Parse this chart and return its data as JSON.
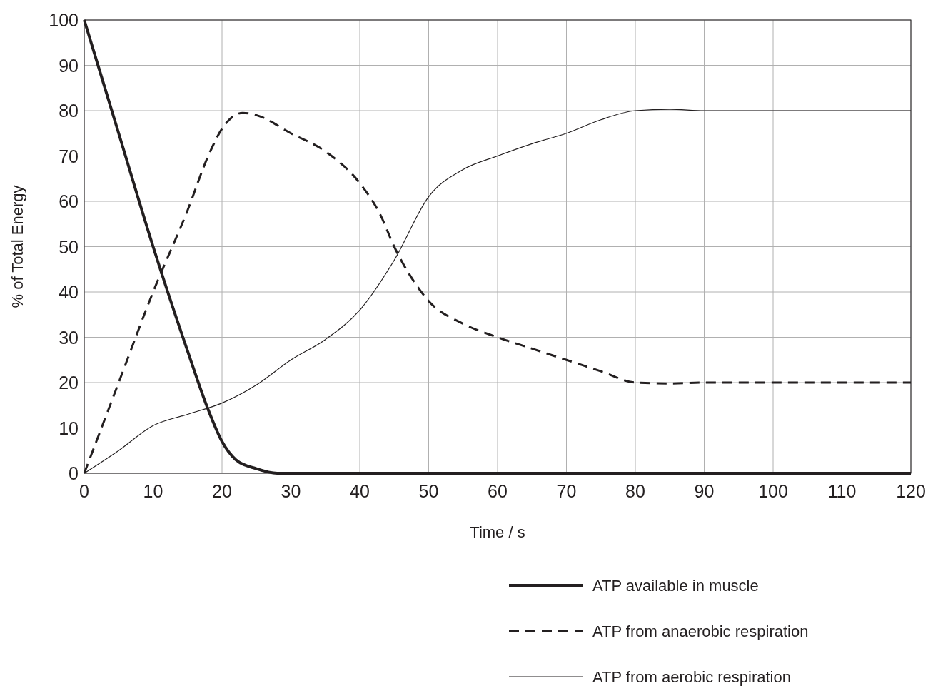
{
  "chart_data": {
    "type": "line",
    "xlabel": "Time / s",
    "ylabel": "% of Total Energy",
    "xlim": [
      0,
      120
    ],
    "ylim": [
      0,
      100
    ],
    "xticks": [
      0,
      10,
      20,
      30,
      40,
      50,
      60,
      70,
      80,
      90,
      100,
      110,
      120
    ],
    "yticks": [
      0,
      10,
      20,
      30,
      40,
      50,
      60,
      70,
      80,
      90,
      100
    ],
    "grid": true,
    "legend": "bottom",
    "series": [
      {
        "name": "ATP available in muscle",
        "color": "#231f20",
        "line_style": "solid",
        "x": [
          0,
          5,
          10,
          15,
          18,
          20,
          22,
          25,
          28,
          30,
          120
        ],
        "values": [
          100,
          75,
          50,
          27,
          14,
          7,
          3,
          1,
          0,
          0,
          0
        ]
      },
      {
        "name": "ATP from anaerobic respiration",
        "color": "#231f20",
        "line_style": "dashed",
        "x": [
          0,
          5,
          10,
          15,
          18,
          20,
          23,
          25,
          30,
          35,
          40,
          43,
          45,
          48,
          50,
          55,
          60,
          65,
          70,
          75,
          80,
          85,
          90,
          120
        ],
        "values": [
          0,
          20,
          40,
          58,
          70,
          76,
          79.5,
          79,
          75,
          71,
          64,
          57,
          50,
          42,
          38,
          33,
          30,
          27.5,
          25,
          22.5,
          20,
          19.8,
          20,
          20
        ]
      },
      {
        "name": "ATP from aerobic respiration",
        "color": "#231f20",
        "line_style": "solid",
        "x": [
          0,
          5,
          10,
          15,
          20,
          25,
          30,
          35,
          40,
          45,
          50,
          55,
          60,
          65,
          70,
          75,
          80,
          85,
          90,
          120
        ],
        "values": [
          0,
          5,
          10.5,
          13,
          15.5,
          19.5,
          25,
          29.5,
          36,
          47,
          61,
          67,
          70,
          72.7,
          75,
          78,
          80,
          80.3,
          80,
          80
        ]
      }
    ]
  }
}
